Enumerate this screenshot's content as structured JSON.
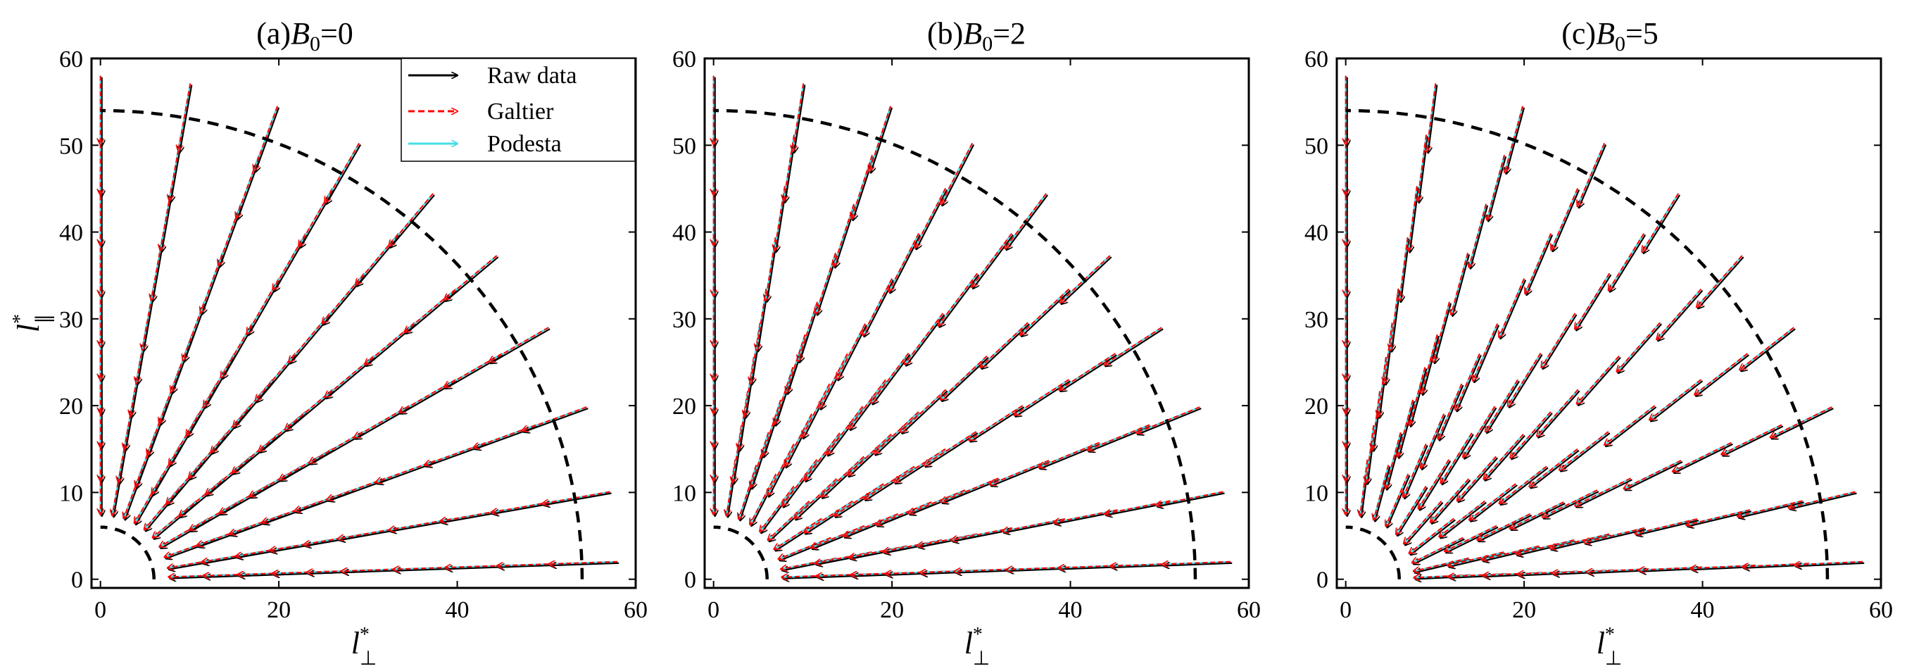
{
  "chart_data": [
    {
      "type": "vector-field",
      "title": "(a)B0=0",
      "title_prefix": "(a)",
      "title_main": "B",
      "title_sub": "0",
      "title_suffix": "=0",
      "xlabel_main": "l",
      "xlabel_sup": "*",
      "xlabel_sub": "⊥",
      "ylabel_main": "l",
      "ylabel_sup": "*",
      "ylabel_sub": "∥",
      "xlim": [
        -1,
        60
      ],
      "ylim": [
        -1,
        60
      ],
      "xticks": [
        0,
        20,
        40,
        60
      ],
      "yticks": [
        0,
        10,
        20,
        30,
        40,
        50,
        60
      ],
      "xtick_labels": [
        "0",
        "20",
        "40",
        "60"
      ],
      "ytick_labels": [
        "0",
        "10",
        "20",
        "30",
        "40",
        "50",
        "60"
      ],
      "show_ylabel": true,
      "anisotropy": 1.0,
      "legend": {
        "position": "top",
        "entries": [
          {
            "label": "Raw data",
            "color": "#000000",
            "style": "solid"
          },
          {
            "label": "Galtier",
            "color": "#ff0000",
            "style": "dashed"
          },
          {
            "label": "Podesta",
            "color": "#44dde8",
            "style": "solid"
          }
        ]
      },
      "boundaries": [
        {
          "shape": "quarter-ellipse",
          "rx": 6,
          "ry": 6
        },
        {
          "shape": "quarter-ellipse",
          "rx": 54,
          "ry": 54
        }
      ]
    },
    {
      "type": "vector-field",
      "title": "(b)B0=2",
      "title_prefix": "(b)",
      "title_main": "B",
      "title_sub": "0",
      "title_suffix": "=2",
      "xlabel_main": "l",
      "xlabel_sup": "*",
      "xlabel_sub": "⊥",
      "ylabel_main": "",
      "ylabel_sup": "",
      "ylabel_sub": "",
      "xlim": [
        -1,
        60
      ],
      "ylim": [
        -1,
        60
      ],
      "xticks": [
        0,
        20,
        40,
        60
      ],
      "yticks": [
        0,
        10,
        20,
        30,
        40,
        50,
        60
      ],
      "xtick_labels": [
        "0",
        "20",
        "40",
        "60"
      ],
      "ytick_labels": [
        "0",
        "10",
        "20",
        "30",
        "40",
        "50",
        "60"
      ],
      "show_ylabel": false,
      "anisotropy": 1.12,
      "boundaries": [
        {
          "shape": "quarter-ellipse",
          "rx": 6,
          "ry": 6
        },
        {
          "shape": "quarter-ellipse",
          "rx": 54,
          "ry": 54
        }
      ]
    },
    {
      "type": "vector-field",
      "title": "(c)B0=5",
      "title_prefix": "(c)",
      "title_main": "B",
      "title_sub": "0",
      "title_suffix": "=5",
      "xlabel_main": "l",
      "xlabel_sup": "*",
      "xlabel_sub": "⊥",
      "ylabel_main": "",
      "ylabel_sup": "",
      "ylabel_sub": "",
      "xlim": [
        -1,
        60
      ],
      "ylim": [
        -1,
        60
      ],
      "xticks": [
        0,
        20,
        40,
        60
      ],
      "yticks": [
        0,
        10,
        20,
        30,
        40,
        50,
        60
      ],
      "xtick_labels": [
        "0",
        "20",
        "40",
        "60"
      ],
      "ytick_labels": [
        "0",
        "10",
        "20",
        "30",
        "40",
        "50",
        "60"
      ],
      "show_ylabel": false,
      "anisotropy": 1.35,
      "boundaries": [
        {
          "shape": "quarter-ellipse",
          "rx": 6,
          "ry": 6
        },
        {
          "shape": "quarter-ellipse",
          "rx": 54,
          "ry": 54
        }
      ]
    }
  ],
  "field_grid": {
    "radii": [
      14,
      18,
      22,
      26,
      30,
      34,
      40,
      46,
      52,
      58
    ],
    "angles_deg": [
      90,
      80,
      70,
      60,
      50,
      40,
      30,
      20,
      10,
      2
    ],
    "arrow_length": 7
  },
  "colors": {
    "raw": "#000000",
    "galtier": "#ff0000",
    "podesta": "#44dde8",
    "axis": "#000000",
    "boundary": "#000000"
  }
}
